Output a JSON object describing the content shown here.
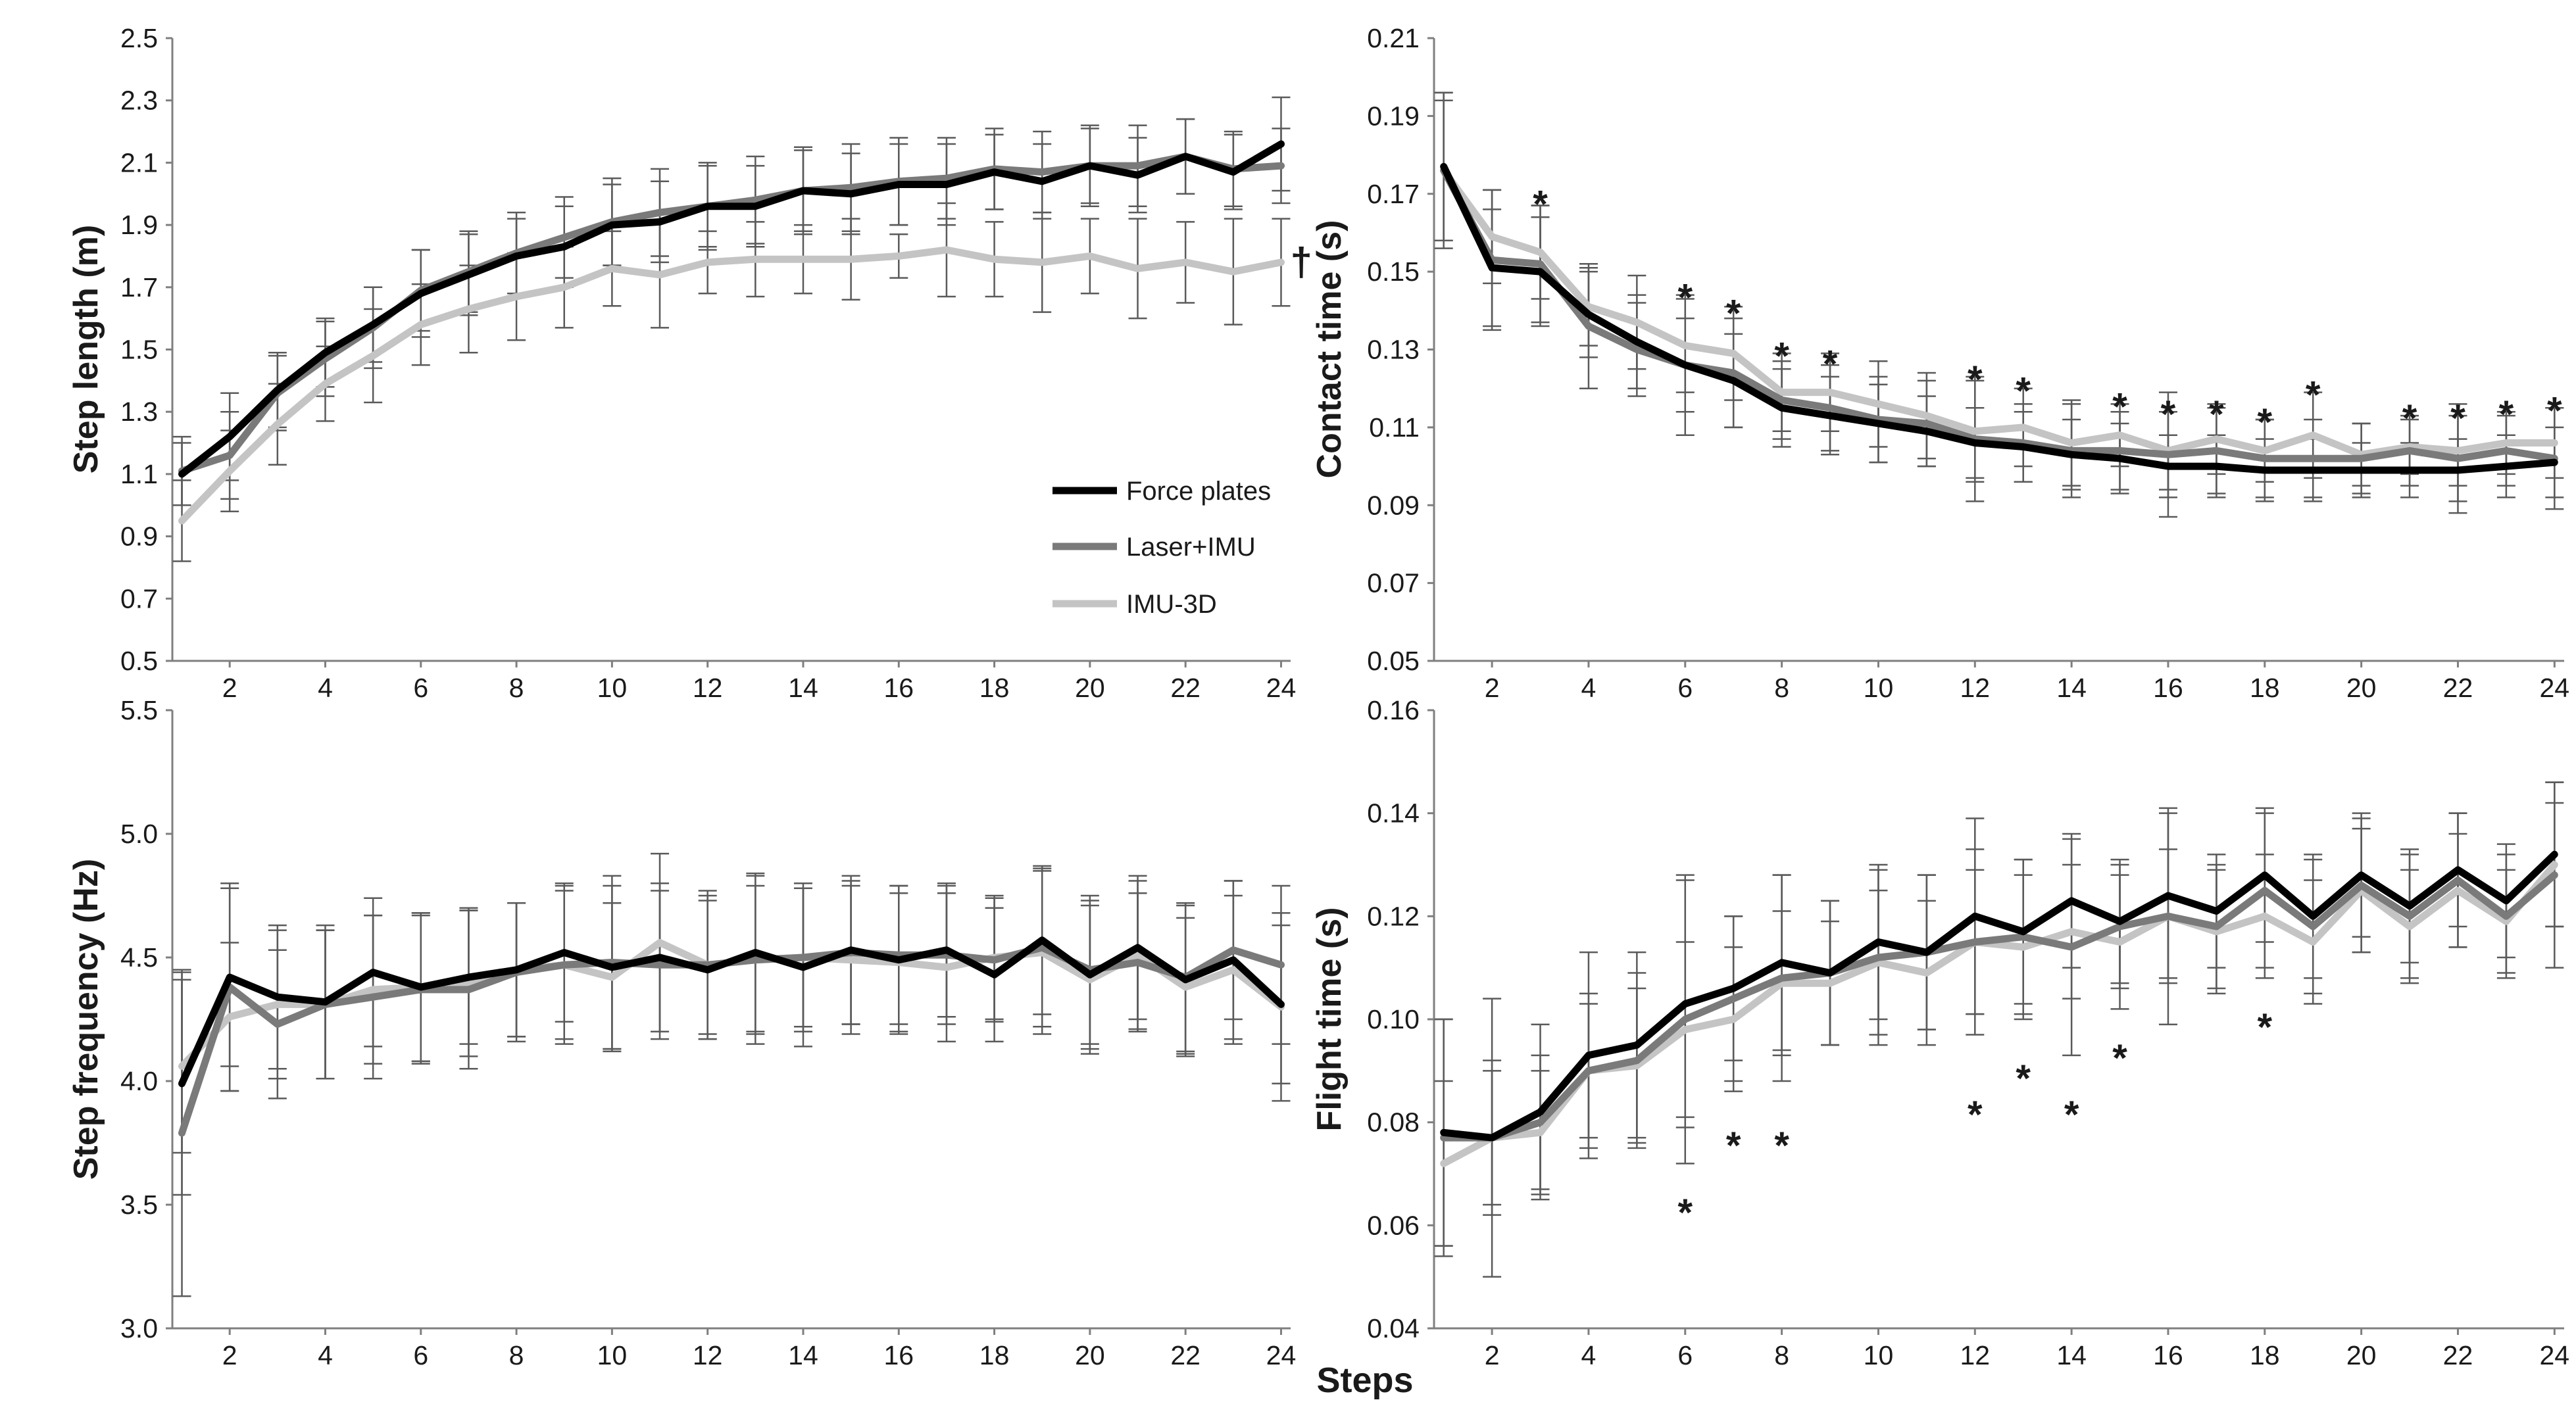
{
  "figure": {
    "xlabel": "Steps",
    "dagger": "†",
    "star": "*",
    "legend": [
      {
        "label": "Force plates",
        "color": "#000000"
      },
      {
        "label": "Laser+IMU",
        "color": "#7a7a7a"
      },
      {
        "label": "IMU-3D",
        "color": "#c4c4c4"
      }
    ]
  },
  "chart_data": [
    {
      "type": "line",
      "id": "step-length",
      "ylabel": "Step length (m)",
      "xlim": [
        0.8,
        24.2
      ],
      "ylim": [
        0.5,
        2.5
      ],
      "yticks": [
        "0.5",
        "0.7",
        "0.9",
        "1.1",
        "1.3",
        "1.5",
        "1.7",
        "1.9",
        "2.1",
        "2.3",
        "2.5"
      ],
      "xticks": [
        "2",
        "4",
        "6",
        "8",
        "10",
        "12",
        "14",
        "16",
        "18",
        "20",
        "22",
        "24"
      ],
      "x": [
        1,
        2,
        3,
        4,
        5,
        6,
        7,
        8,
        9,
        10,
        11,
        12,
        13,
        14,
        15,
        16,
        17,
        18,
        19,
        20,
        21,
        22,
        23,
        24
      ],
      "series": [
        {
          "name": "Force plates",
          "color": "#000000",
          "values": [
            1.1,
            1.22,
            1.37,
            1.49,
            1.58,
            1.68,
            1.74,
            1.8,
            1.83,
            1.9,
            1.91,
            1.96,
            1.96,
            2.01,
            2.0,
            2.03,
            2.03,
            2.07,
            2.04,
            2.09,
            2.06,
            2.12,
            2.07,
            2.16
          ],
          "errors": [
            0.1,
            0.14,
            0.12,
            0.11,
            0.12,
            0.14,
            0.13,
            0.12,
            0.13,
            0.13,
            0.13,
            0.13,
            0.13,
            0.13,
            0.13,
            0.13,
            0.13,
            0.12,
            0.12,
            0.12,
            0.12,
            0.12,
            0.12,
            0.15
          ]
        },
        {
          "name": "Laser+IMU",
          "color": "#7a7a7a",
          "values": [
            1.11,
            1.16,
            1.36,
            1.47,
            1.57,
            1.69,
            1.75,
            1.81,
            1.86,
            1.91,
            1.94,
            1.96,
            1.98,
            2.01,
            2.02,
            2.04,
            2.05,
            2.08,
            2.07,
            2.09,
            2.09,
            2.12,
            2.08,
            2.09
          ],
          "errors": [
            0.11,
            0.14,
            0.12,
            0.12,
            0.13,
            0.13,
            0.13,
            0.13,
            0.13,
            0.14,
            0.14,
            0.14,
            0.14,
            0.14,
            0.14,
            0.14,
            0.13,
            0.13,
            0.13,
            0.13,
            0.13,
            0.12,
            0.12,
            0.12
          ]
        },
        {
          "name": "IMU-3D",
          "color": "#c4c4c4",
          "values": [
            0.95,
            1.11,
            1.26,
            1.39,
            1.48,
            1.58,
            1.63,
            1.67,
            1.7,
            1.76,
            1.74,
            1.78,
            1.79,
            1.79,
            1.79,
            1.8,
            1.82,
            1.79,
            1.78,
            1.8,
            1.76,
            1.78,
            1.75,
            1.78
          ],
          "errors": [
            0.13,
            0.13,
            0.13,
            0.12,
            0.15,
            0.13,
            0.14,
            0.14,
            0.13,
            0.12,
            0.17,
            0.1,
            0.12,
            0.11,
            0.13,
            0.07,
            0.15,
            0.12,
            0.16,
            0.12,
            0.16,
            0.13,
            0.17,
            0.14
          ]
        }
      ],
      "annotations": [
        {
          "text": "†",
          "x": 24,
          "y": 1.78
        }
      ]
    },
    {
      "type": "line",
      "id": "contact-time",
      "ylabel": "Contact time (s)",
      "xlim": [
        0.8,
        24.2
      ],
      "ylim": [
        0.05,
        0.21
      ],
      "yticks": [
        "0.05",
        "0.07",
        "0.09",
        "0.11",
        "0.13",
        "0.15",
        "0.17",
        "0.19",
        "0.21"
      ],
      "xticks": [
        "2",
        "4",
        "6",
        "8",
        "10",
        "12",
        "14",
        "16",
        "18",
        "20",
        "22",
        "24"
      ],
      "x": [
        1,
        2,
        3,
        4,
        5,
        6,
        7,
        8,
        9,
        10,
        11,
        12,
        13,
        14,
        15,
        16,
        17,
        18,
        19,
        20,
        21,
        22,
        23,
        24
      ],
      "series": [
        {
          "name": "Force plates",
          "color": "#000000",
          "values": [
            0.177,
            0.151,
            0.15,
            0.139,
            0.132,
            0.126,
            0.122,
            0.115,
            0.113,
            0.111,
            0.109,
            0.106,
            0.105,
            0.103,
            0.102,
            0.1,
            0.1,
            0.099,
            0.099,
            0.099,
            0.099,
            0.099,
            0.1,
            0.101
          ],
          "errors": [
            0.019,
            0.015,
            0.014,
            0.011,
            0.012,
            0.012,
            0.012,
            0.01,
            0.01,
            0.01,
            0.009,
            0.009,
            0.009,
            0.009,
            0.009,
            0.008,
            0.008,
            0.008,
            0.008,
            0.007,
            0.007,
            0.008,
            0.008,
            0.009
          ]
        },
        {
          "name": "Laser+IMU",
          "color": "#7a7a7a",
          "values": [
            0.176,
            0.153,
            0.152,
            0.136,
            0.13,
            0.126,
            0.124,
            0.117,
            0.115,
            0.112,
            0.111,
            0.107,
            0.106,
            0.104,
            0.104,
            0.103,
            0.104,
            0.102,
            0.102,
            0.102,
            0.104,
            0.102,
            0.104,
            0.102
          ],
          "errors": [
            0.02,
            0.018,
            0.015,
            0.016,
            0.012,
            0.018,
            0.014,
            0.01,
            0.011,
            0.011,
            0.011,
            0.016,
            0.01,
            0.012,
            0.01,
            0.016,
            0.011,
            0.01,
            0.01,
            0.009,
            0.009,
            0.014,
            0.009,
            0.013
          ]
        },
        {
          "name": "IMU-3D",
          "color": "#c4c4c4",
          "values": [
            0.176,
            0.159,
            0.155,
            0.141,
            0.137,
            0.131,
            0.129,
            0.119,
            0.119,
            0.116,
            0.113,
            0.109,
            0.11,
            0.106,
            0.108,
            0.104,
            0.107,
            0.104,
            0.108,
            0.103,
            0.105,
            0.104,
            0.106,
            0.106
          ],
          "errors": [
            0.018,
            0.012,
            0.012,
            0.01,
            0.012,
            0.012,
            0.012,
            0.01,
            0.01,
            0.011,
            0.011,
            0.013,
            0.01,
            0.011,
            0.008,
            0.01,
            0.009,
            0.008,
            0.011,
            0.008,
            0.007,
            0.009,
            0.008,
            0.009
          ]
        }
      ],
      "significance": [
        3,
        6,
        7,
        8,
        9,
        12,
        13,
        15,
        16,
        17,
        18,
        19,
        21,
        22,
        23,
        24
      ],
      "significance_y": [
        0.168,
        0.144,
        0.14,
        0.129,
        0.127,
        0.123,
        0.12,
        0.116,
        0.114,
        0.114,
        0.112,
        0.119,
        0.113,
        0.113,
        0.114,
        0.115
      ]
    },
    {
      "type": "line",
      "id": "step-frequency",
      "ylabel": "Step frequency (Hz)",
      "xlim": [
        0.8,
        24.2
      ],
      "ylim": [
        3.0,
        5.5
      ],
      "yticks": [
        "3.0",
        "3.5",
        "4.0",
        "4.5",
        "5.0",
        "5.5"
      ],
      "xticks": [
        "2",
        "4",
        "6",
        "8",
        "10",
        "12",
        "14",
        "16",
        "18",
        "20",
        "22",
        "24"
      ],
      "x": [
        1,
        2,
        3,
        4,
        5,
        6,
        7,
        8,
        9,
        10,
        11,
        12,
        13,
        14,
        15,
        16,
        17,
        18,
        19,
        20,
        21,
        22,
        23,
        24
      ],
      "series": [
        {
          "name": "Force plates",
          "color": "#000000",
          "values": [
            3.99,
            4.42,
            4.34,
            4.32,
            4.44,
            4.38,
            4.42,
            4.45,
            4.52,
            4.46,
            4.5,
            4.45,
            4.52,
            4.46,
            4.53,
            4.49,
            4.53,
            4.43,
            4.57,
            4.43,
            4.54,
            4.41,
            4.49,
            4.31
          ],
          "errors": [
            0.45,
            0.36,
            0.29,
            0.31,
            0.3,
            0.3,
            0.27,
            0.27,
            0.28,
            0.33,
            0.3,
            0.28,
            0.32,
            0.32,
            0.3,
            0.3,
            0.27,
            0.27,
            0.3,
            0.3,
            0.29,
            0.3,
            0.32,
            0.32
          ]
        },
        {
          "name": "Laser+IMU",
          "color": "#7a7a7a",
          "values": [
            3.79,
            4.38,
            4.23,
            4.31,
            4.34,
            4.37,
            4.37,
            4.44,
            4.47,
            4.48,
            4.47,
            4.47,
            4.49,
            4.5,
            4.52,
            4.51,
            4.51,
            4.49,
            4.54,
            4.45,
            4.48,
            4.42,
            4.53,
            4.47
          ],
          "errors": [
            0.66,
            0.42,
            0.3,
            0.3,
            0.33,
            0.3,
            0.32,
            0.28,
            0.32,
            0.35,
            0.3,
            0.28,
            0.34,
            0.3,
            0.29,
            0.28,
            0.28,
            0.25,
            0.32,
            0.3,
            0.28,
            0.3,
            0.28,
            0.32
          ]
        },
        {
          "name": "IMU-3D",
          "color": "#c4c4c4",
          "values": [
            4.06,
            4.26,
            4.31,
            4.31,
            4.37,
            4.38,
            4.4,
            4.45,
            4.47,
            4.42,
            4.56,
            4.47,
            4.49,
            4.5,
            4.49,
            4.48,
            4.46,
            4.5,
            4.52,
            4.41,
            4.51,
            4.38,
            4.45,
            4.3
          ],
          "errors": [
            0.35,
            0.3,
            0.3,
            0.3,
            0.3,
            0.3,
            0.3,
            0.27,
            0.3,
            0.3,
            0.36,
            0.3,
            0.3,
            0.28,
            0.3,
            0.28,
            0.3,
            0.25,
            0.33,
            0.3,
            0.3,
            0.28,
            0.3,
            0.38
          ]
        }
      ]
    },
    {
      "type": "line",
      "id": "flight-time",
      "ylabel": "Flight time (s)",
      "xlim": [
        0.8,
        24.2
      ],
      "ylim": [
        0.04,
        0.16
      ],
      "yticks": [
        "0.04",
        "0.06",
        "0.08",
        "0.10",
        "0.12",
        "0.14",
        "0.16"
      ],
      "xticks": [
        "2",
        "4",
        "6",
        "8",
        "10",
        "12",
        "14",
        "16",
        "18",
        "20",
        "22",
        "24"
      ],
      "x": [
        1,
        2,
        3,
        4,
        5,
        6,
        7,
        8,
        9,
        10,
        11,
        12,
        13,
        14,
        15,
        16,
        17,
        18,
        19,
        20,
        21,
        22,
        23,
        24
      ],
      "series": [
        {
          "name": "Force plates",
          "color": "#000000",
          "values": [
            0.078,
            0.077,
            0.082,
            0.093,
            0.095,
            0.103,
            0.106,
            0.111,
            0.109,
            0.115,
            0.113,
            0.12,
            0.117,
            0.123,
            0.119,
            0.124,
            0.121,
            0.128,
            0.12,
            0.128,
            0.122,
            0.129,
            0.123,
            0.132
          ],
          "errors": [
            0.022,
            0.015,
            0.017,
            0.02,
            0.018,
            0.024,
            0.014,
            0.017,
            0.014,
            0.015,
            0.015,
            0.019,
            0.014,
            0.013,
            0.012,
            0.016,
            0.011,
            0.013,
            0.012,
            0.012,
            0.011,
            0.011,
            0.011,
            0.014
          ]
        },
        {
          "name": "Laser+IMU",
          "color": "#7a7a7a",
          "values": [
            0.077,
            0.077,
            0.08,
            0.09,
            0.092,
            0.1,
            0.104,
            0.108,
            0.109,
            0.112,
            0.113,
            0.115,
            0.116,
            0.114,
            0.118,
            0.12,
            0.118,
            0.125,
            0.118,
            0.126,
            0.12,
            0.127,
            0.12,
            0.128
          ],
          "errors": [
            0.023,
            0.027,
            0.013,
            0.015,
            0.017,
            0.028,
            0.016,
            0.02,
            0.014,
            0.017,
            0.015,
            0.018,
            0.015,
            0.021,
            0.012,
            0.021,
            0.012,
            0.015,
            0.013,
            0.013,
            0.012,
            0.013,
            0.012,
            0.018
          ]
        },
        {
          "name": "IMU-3D",
          "color": "#c4c4c4",
          "values": [
            0.072,
            0.077,
            0.078,
            0.09,
            0.091,
            0.098,
            0.1,
            0.107,
            0.107,
            0.111,
            0.109,
            0.115,
            0.114,
            0.117,
            0.115,
            0.12,
            0.117,
            0.12,
            0.115,
            0.125,
            0.118,
            0.125,
            0.119,
            0.13
          ],
          "errors": [
            0.016,
            0.013,
            0.012,
            0.013,
            0.015,
            0.017,
            0.014,
            0.014,
            0.012,
            0.014,
            0.014,
            0.014,
            0.014,
            0.013,
            0.013,
            0.013,
            0.012,
            0.012,
            0.012,
            0.012,
            0.011,
            0.011,
            0.01,
            0.012
          ]
        }
      ],
      "significance": [
        6,
        7,
        8,
        12,
        13,
        14,
        15,
        18
      ],
      "significance_y": [
        0.063,
        0.076,
        0.076,
        0.082,
        0.089,
        0.082,
        0.093,
        0.099
      ]
    }
  ]
}
